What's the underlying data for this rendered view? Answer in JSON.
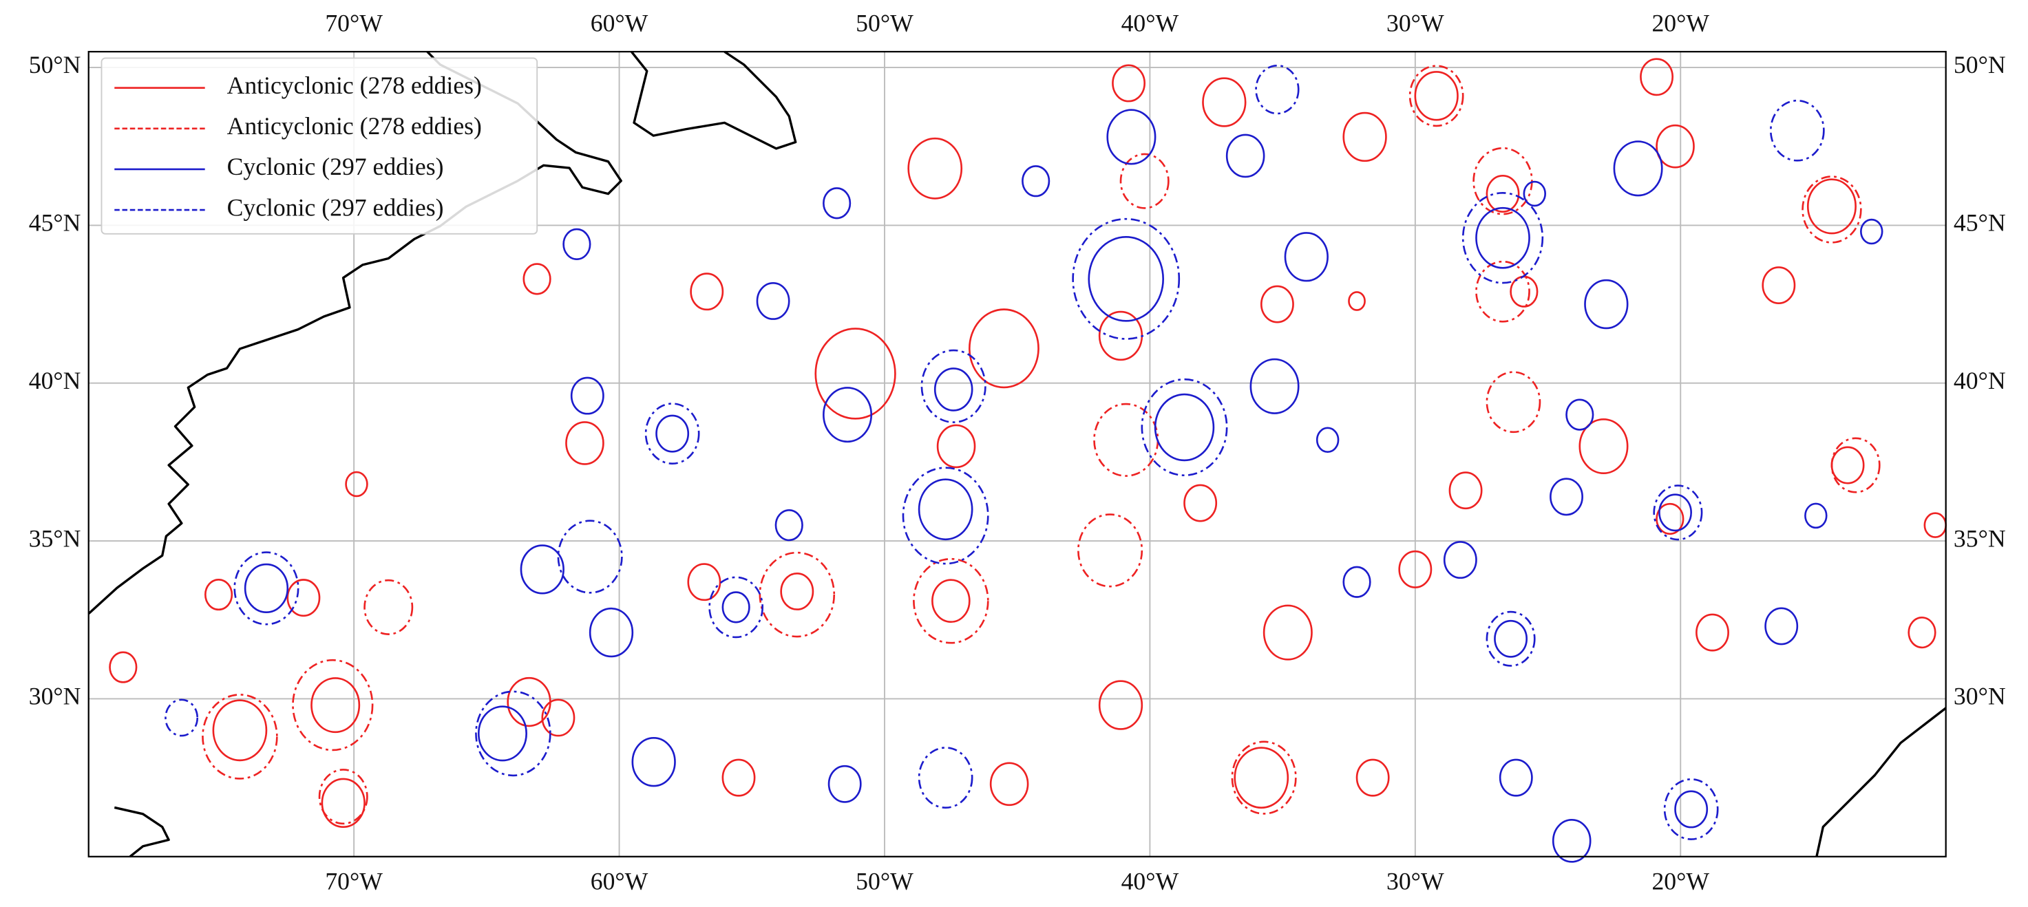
{
  "chart_data": {
    "type": "map",
    "xlim": [
      -80,
      -10
    ],
    "ylim": [
      25,
      50.5
    ],
    "xticks": [
      {
        "value": -70,
        "label": "70°W"
      },
      {
        "value": -60,
        "label": "60°W"
      },
      {
        "value": -50,
        "label": "50°W"
      },
      {
        "value": -40,
        "label": "40°W"
      },
      {
        "value": -30,
        "label": "30°W"
      },
      {
        "value": -20,
        "label": "20°W"
      }
    ],
    "yticks": [
      {
        "value": 30,
        "label": "30°N"
      },
      {
        "value": 35,
        "label": "35°N"
      },
      {
        "value": 40,
        "label": "40°N"
      },
      {
        "value": 45,
        "label": "45°N"
      },
      {
        "value": 50,
        "label": "50°N"
      }
    ],
    "grid": true,
    "legend": "upper left",
    "series": [
      {
        "name": "Anticyclonic (278 eddies)",
        "color": "#ee2222",
        "line": "solid",
        "eddies": [
          [
            -48.1,
            46.8,
            1.0
          ],
          [
            -51.1,
            40.3,
            1.5
          ],
          [
            -45.5,
            41.1,
            1.3
          ],
          [
            -37.2,
            48.9,
            0.8
          ],
          [
            -40.8,
            49.5,
            0.6
          ],
          [
            -31.9,
            47.8,
            0.8
          ],
          [
            -29.2,
            49.1,
            0.8
          ],
          [
            -20.2,
            47.5,
            0.7
          ],
          [
            -20.9,
            49.7,
            0.6
          ],
          [
            -14.3,
            45.6,
            0.9
          ],
          [
            -41.1,
            41.5,
            0.8
          ],
          [
            -35.2,
            42.5,
            0.6
          ],
          [
            -26.7,
            46.0,
            0.6
          ],
          [
            -22.9,
            38.0,
            0.9
          ],
          [
            -20.4,
            35.7,
            0.5
          ],
          [
            -35.8,
            27.5,
            1.0
          ],
          [
            -34.8,
            32.1,
            0.9
          ],
          [
            -62.3,
            29.4,
            0.6
          ],
          [
            -63.4,
            29.9,
            0.8
          ],
          [
            -71.9,
            33.2,
            0.6
          ],
          [
            -75.1,
            33.3,
            0.5
          ],
          [
            -56.8,
            33.7,
            0.6
          ],
          [
            -53.3,
            33.4,
            0.6
          ],
          [
            -47.5,
            33.1,
            0.7
          ],
          [
            -70.7,
            29.8,
            0.9
          ],
          [
            -74.3,
            29.0,
            1.0
          ],
          [
            -70.4,
            26.7,
            0.8
          ],
          [
            -78.7,
            31.0,
            0.5
          ],
          [
            -69.9,
            36.8,
            0.4
          ],
          [
            -61.3,
            38.1,
            0.7
          ],
          [
            -63.1,
            43.3,
            0.5
          ],
          [
            -56.7,
            42.9,
            0.6
          ],
          [
            -47.3,
            38.0,
            0.7
          ],
          [
            -38.1,
            36.2,
            0.6
          ],
          [
            -30.0,
            34.1,
            0.6
          ],
          [
            -28.1,
            36.6,
            0.6
          ],
          [
            -18.8,
            32.1,
            0.6
          ],
          [
            -13.7,
            37.4,
            0.6
          ],
          [
            -10.4,
            35.5,
            0.4
          ],
          [
            -10.9,
            32.1,
            0.5
          ],
          [
            -31.6,
            27.5,
            0.6
          ],
          [
            -41.1,
            29.8,
            0.8
          ],
          [
            -45.3,
            27.3,
            0.7
          ],
          [
            -55.5,
            27.5,
            0.6
          ],
          [
            -16.3,
            43.1,
            0.6
          ],
          [
            -25.9,
            42.9,
            0.5
          ],
          [
            -32.2,
            42.6,
            0.3
          ]
        ]
      },
      {
        "name": "Anticyclonic (278 eddies)",
        "color": "#ee2222",
        "line": "dashed",
        "eddies": [
          [
            -41.5,
            34.7,
            1.2
          ],
          [
            -40.9,
            38.2,
            1.2
          ],
          [
            -26.3,
            39.4,
            1.0
          ],
          [
            -26.7,
            46.4,
            1.1
          ],
          [
            -14.3,
            45.5,
            1.1
          ],
          [
            -53.3,
            33.3,
            1.4
          ],
          [
            -47.5,
            33.1,
            1.4
          ],
          [
            -68.7,
            32.9,
            0.9
          ],
          [
            -70.8,
            29.8,
            1.5
          ],
          [
            -74.3,
            28.8,
            1.4
          ],
          [
            -70.4,
            26.9,
            0.9
          ],
          [
            -35.7,
            27.5,
            1.2
          ],
          [
            -40.2,
            46.4,
            0.9
          ],
          [
            -29.2,
            49.1,
            1.0
          ],
          [
            -26.7,
            42.9,
            1.0
          ],
          [
            -13.4,
            37.4,
            0.9
          ]
        ]
      },
      {
        "name": "Cyclonic (297 eddies)",
        "color": "#1c1ccc",
        "line": "solid",
        "eddies": [
          [
            -40.9,
            43.3,
            1.4
          ],
          [
            -40.7,
            47.8,
            0.9
          ],
          [
            -38.7,
            38.6,
            1.1
          ],
          [
            -47.4,
            39.8,
            0.7
          ],
          [
            -47.7,
            36.0,
            1.0
          ],
          [
            -51.4,
            39.0,
            0.9
          ],
          [
            -58.0,
            38.4,
            0.6
          ],
          [
            -55.6,
            32.9,
            0.5
          ],
          [
            -62.9,
            34.1,
            0.8
          ],
          [
            -60.3,
            32.1,
            0.8
          ],
          [
            -64.4,
            28.9,
            0.9
          ],
          [
            -73.3,
            33.5,
            0.8
          ],
          [
            -58.7,
            28.0,
            0.8
          ],
          [
            -51.5,
            27.3,
            0.6
          ],
          [
            -26.7,
            44.6,
            1.0
          ],
          [
            -22.8,
            42.5,
            0.8
          ],
          [
            -21.6,
            46.8,
            0.9
          ],
          [
            -20.2,
            35.9,
            0.6
          ],
          [
            -26.4,
            31.9,
            0.6
          ],
          [
            -26.2,
            27.5,
            0.6
          ],
          [
            -19.6,
            26.5,
            0.6
          ],
          [
            -16.2,
            32.3,
            0.6
          ],
          [
            -24.1,
            25.5,
            0.7
          ],
          [
            -35.3,
            39.9,
            0.9
          ],
          [
            -34.1,
            44.0,
            0.8
          ],
          [
            -36.4,
            47.2,
            0.7
          ],
          [
            -24.3,
            36.4,
            0.6
          ],
          [
            -23.8,
            39.0,
            0.5
          ],
          [
            -32.2,
            33.7,
            0.5
          ],
          [
            -28.3,
            34.4,
            0.6
          ],
          [
            -33.3,
            38.2,
            0.4
          ],
          [
            -14.9,
            35.8,
            0.4
          ],
          [
            -53.6,
            35.5,
            0.5
          ],
          [
            -61.2,
            39.6,
            0.6
          ],
          [
            -54.2,
            42.6,
            0.6
          ],
          [
            -51.8,
            45.7,
            0.5
          ],
          [
            -61.6,
            44.4,
            0.5
          ],
          [
            -44.3,
            46.4,
            0.5
          ],
          [
            -25.5,
            46.0,
            0.4
          ],
          [
            -12.8,
            44.8,
            0.4
          ]
        ]
      },
      {
        "name": "Cyclonic (297 eddies)",
        "color": "#1c1ccc",
        "line": "dashed",
        "eddies": [
          [
            -40.9,
            43.3,
            2.0
          ],
          [
            -38.7,
            38.6,
            1.6
          ],
          [
            -47.4,
            39.9,
            1.2
          ],
          [
            -47.7,
            35.8,
            1.6
          ],
          [
            -58.0,
            38.4,
            1.0
          ],
          [
            -55.6,
            32.9,
            1.0
          ],
          [
            -64.0,
            28.9,
            1.4
          ],
          [
            -73.3,
            33.5,
            1.2
          ],
          [
            -61.1,
            34.5,
            1.2
          ],
          [
            -26.7,
            44.6,
            1.5
          ],
          [
            -20.1,
            35.9,
            0.9
          ],
          [
            -19.6,
            26.5,
            1.0
          ],
          [
            -26.4,
            31.9,
            0.9
          ],
          [
            -47.7,
            27.5,
            1.0
          ],
          [
            -15.6,
            48.0,
            1.0
          ],
          [
            -76.5,
            29.4,
            0.6
          ],
          [
            -35.2,
            49.3,
            0.8
          ]
        ]
      }
    ]
  }
}
